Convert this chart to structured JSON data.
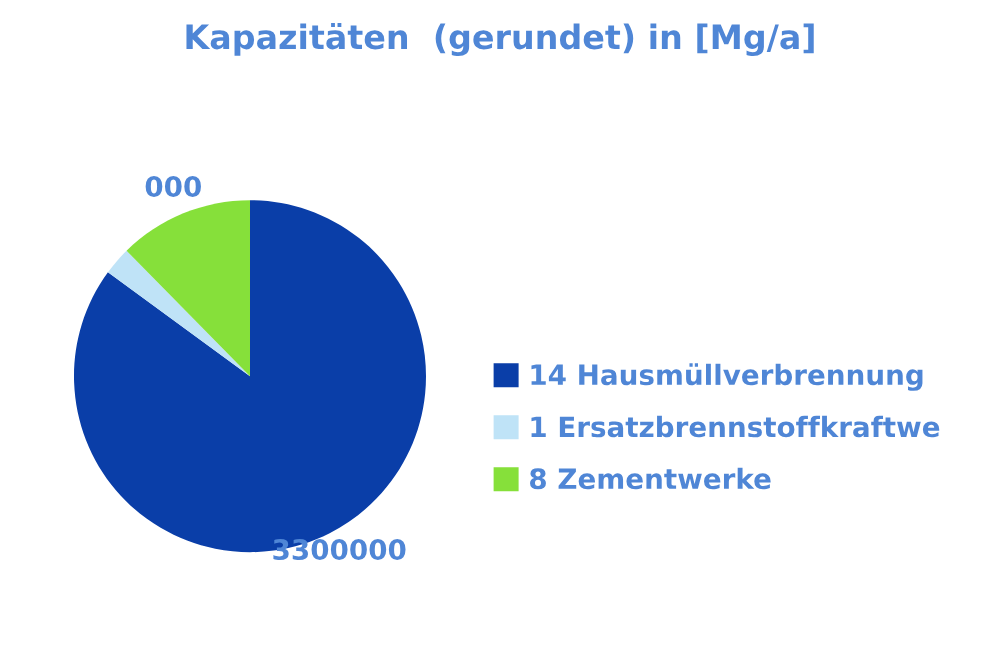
{
  "chart_data": {
    "type": "pie",
    "title": "Kapazitäten  (gerundet) in [Mg/a]",
    "categories": [
      "14 Hausmüllverbrennung",
      "1 Ersatzbrennstoffkraftwe",
      "8 Zementwerke"
    ],
    "values": [
      3300000,
      100000,
      480000
    ],
    "colors": [
      "#0a3ea8",
      "#bfe3f7",
      "#86e03a"
    ],
    "value_labels": [
      "3300000",
      null,
      null
    ],
    "annotations": [
      "000"
    ],
    "legend": "right"
  }
}
